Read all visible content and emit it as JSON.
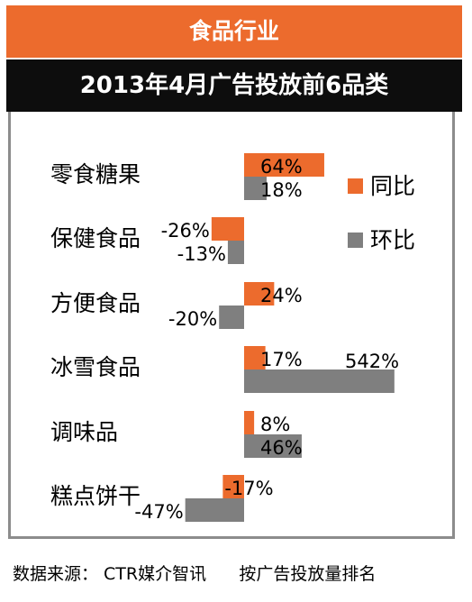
{
  "header": {
    "title": "食品行业",
    "subtitle": "2013年4月广告投放前6品类"
  },
  "footer": {
    "source": "数据来源： CTR媒介智讯",
    "note": "按广告投放量排名"
  },
  "colors": {
    "yoy": "#ec6b2d",
    "mom": "#7f7f7f",
    "header_orange": "#ec6b2d",
    "header_black": "#0d0d0d"
  },
  "chart_data": {
    "type": "bar",
    "orientation": "horizontal",
    "title": "2013年4月广告投放前6品类",
    "categories": [
      "零食糖果",
      "保健食品",
      "方便食品",
      "冰雪食品",
      "调味品",
      "糕点饼干"
    ],
    "series": [
      {
        "name": "同比",
        "values": [
          64,
          -26,
          24,
          17,
          8,
          -17
        ],
        "labels": [
          "64%",
          "-26%",
          "24%",
          "17%",
          "8%",
          "-17%"
        ]
      },
      {
        "name": "环比",
        "values": [
          18,
          -13,
          -20,
          542,
          46,
          -47
        ],
        "labels": [
          "18%",
          "-13%",
          "-20%",
          "542%",
          "46%",
          "-47%"
        ]
      }
    ],
    "legend": "right",
    "grid": false
  }
}
